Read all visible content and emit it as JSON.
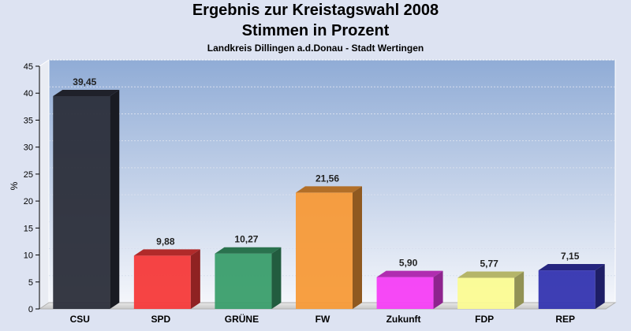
{
  "title": "Ergebnis zur Kreistagswahl 2008",
  "subtitle": "Stimmen in Prozent",
  "subsubtitle": "Landkreis Dillingen a.d.Donau - Stadt Wertingen",
  "chart_data": {
    "type": "bar",
    "title": "Ergebnis zur Kreistagswahl 2008",
    "subtitle": "Stimmen in Prozent",
    "xlabel": "",
    "ylabel": "%",
    "ylim": [
      0,
      45
    ],
    "yticks": [
      "0",
      "5",
      "10",
      "15",
      "20",
      "25",
      "30",
      "35",
      "40",
      "45"
    ],
    "categories": [
      "CSU",
      "SPD",
      "GRÜNE",
      "FW",
      "Zukunft",
      "FDP",
      "REP"
    ],
    "values": [
      39.45,
      9.88,
      10.27,
      21.56,
      5.9,
      5.77,
      7.15
    ],
    "value_labels": [
      "39,45",
      "9,88",
      "10,27",
      "21,56",
      "5,90",
      "5,77",
      "7,15"
    ],
    "colors": [
      "#2b2e3a",
      "#f63a3a",
      "#3a9e6c",
      "#f79a38",
      "#f53ef5",
      "#fbfb92",
      "#3434b0"
    ],
    "grid": true
  }
}
